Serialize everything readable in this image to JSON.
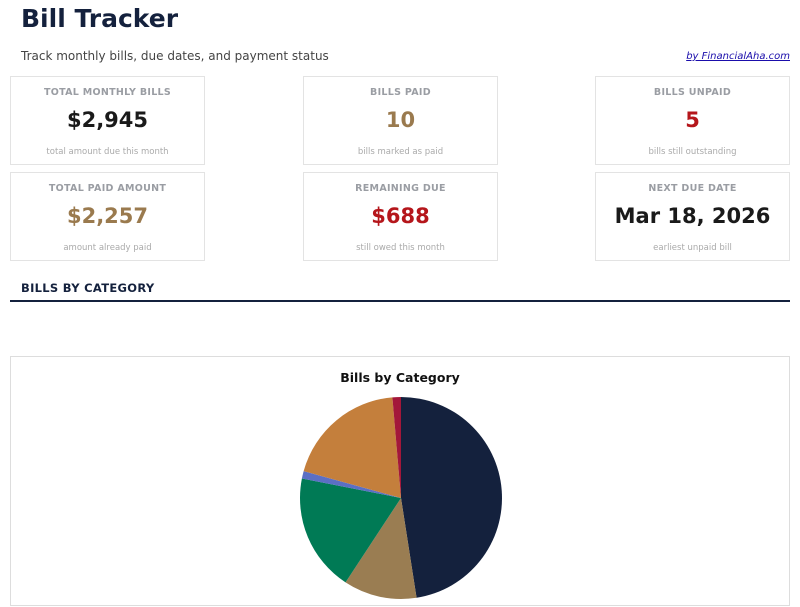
{
  "header": {
    "title": "Bill Tracker",
    "subtitle": "Track monthly bills, due dates, and payment status",
    "credit_link": "by FinancialAha.com"
  },
  "cards": [
    {
      "label": "TOTAL MONTHLY BILLS",
      "value": "$2,945",
      "note": "total amount due this month",
      "color": "#1a1a1a"
    },
    {
      "label": "BILLS PAID",
      "value": "10",
      "note": "bills marked as paid",
      "color": "#9a7a4e"
    },
    {
      "label": "BILLS UNPAID",
      "value": "5",
      "note": "bills still outstanding",
      "color": "#b5161b"
    },
    {
      "label": "TOTAL PAID AMOUNT",
      "value": "$2,257",
      "note": "amount already paid",
      "color": "#9a7a4e"
    },
    {
      "label": "REMAINING DUE",
      "value": "$688",
      "note": "still owed this month",
      "color": "#b5161b"
    },
    {
      "label": "NEXT DUE DATE",
      "value": "Mar 18, 2026",
      "note": "earliest unpaid bill",
      "color": "#1a1a1a"
    }
  ],
  "section": {
    "title": "BILLS BY CATEGORY"
  },
  "chart_data": {
    "type": "pie",
    "title": "Bills by Category",
    "start": "top",
    "direction": "clockwise",
    "values": [
      1400,
      345,
      555,
      35,
      570,
      40
    ],
    "colors": [
      "#14213d",
      "#9a7d52",
      "#007a55",
      "#5b6fc4",
      "#c47f3c",
      "#a3173a"
    ]
  }
}
